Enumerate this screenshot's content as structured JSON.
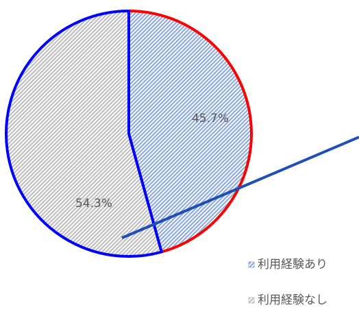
{
  "chart_data": {
    "type": "pie",
    "categories": [
      "利用経験あり",
      "利用経験なし"
    ],
    "values": [
      45.7,
      54.3
    ],
    "value_labels": [
      "45.7%",
      "54.3%"
    ],
    "colors": [
      "#8faadc",
      "#bfbfbf"
    ],
    "edgecolors": [
      "#ff0000",
      "#0000ff"
    ],
    "legend": "right"
  }
}
